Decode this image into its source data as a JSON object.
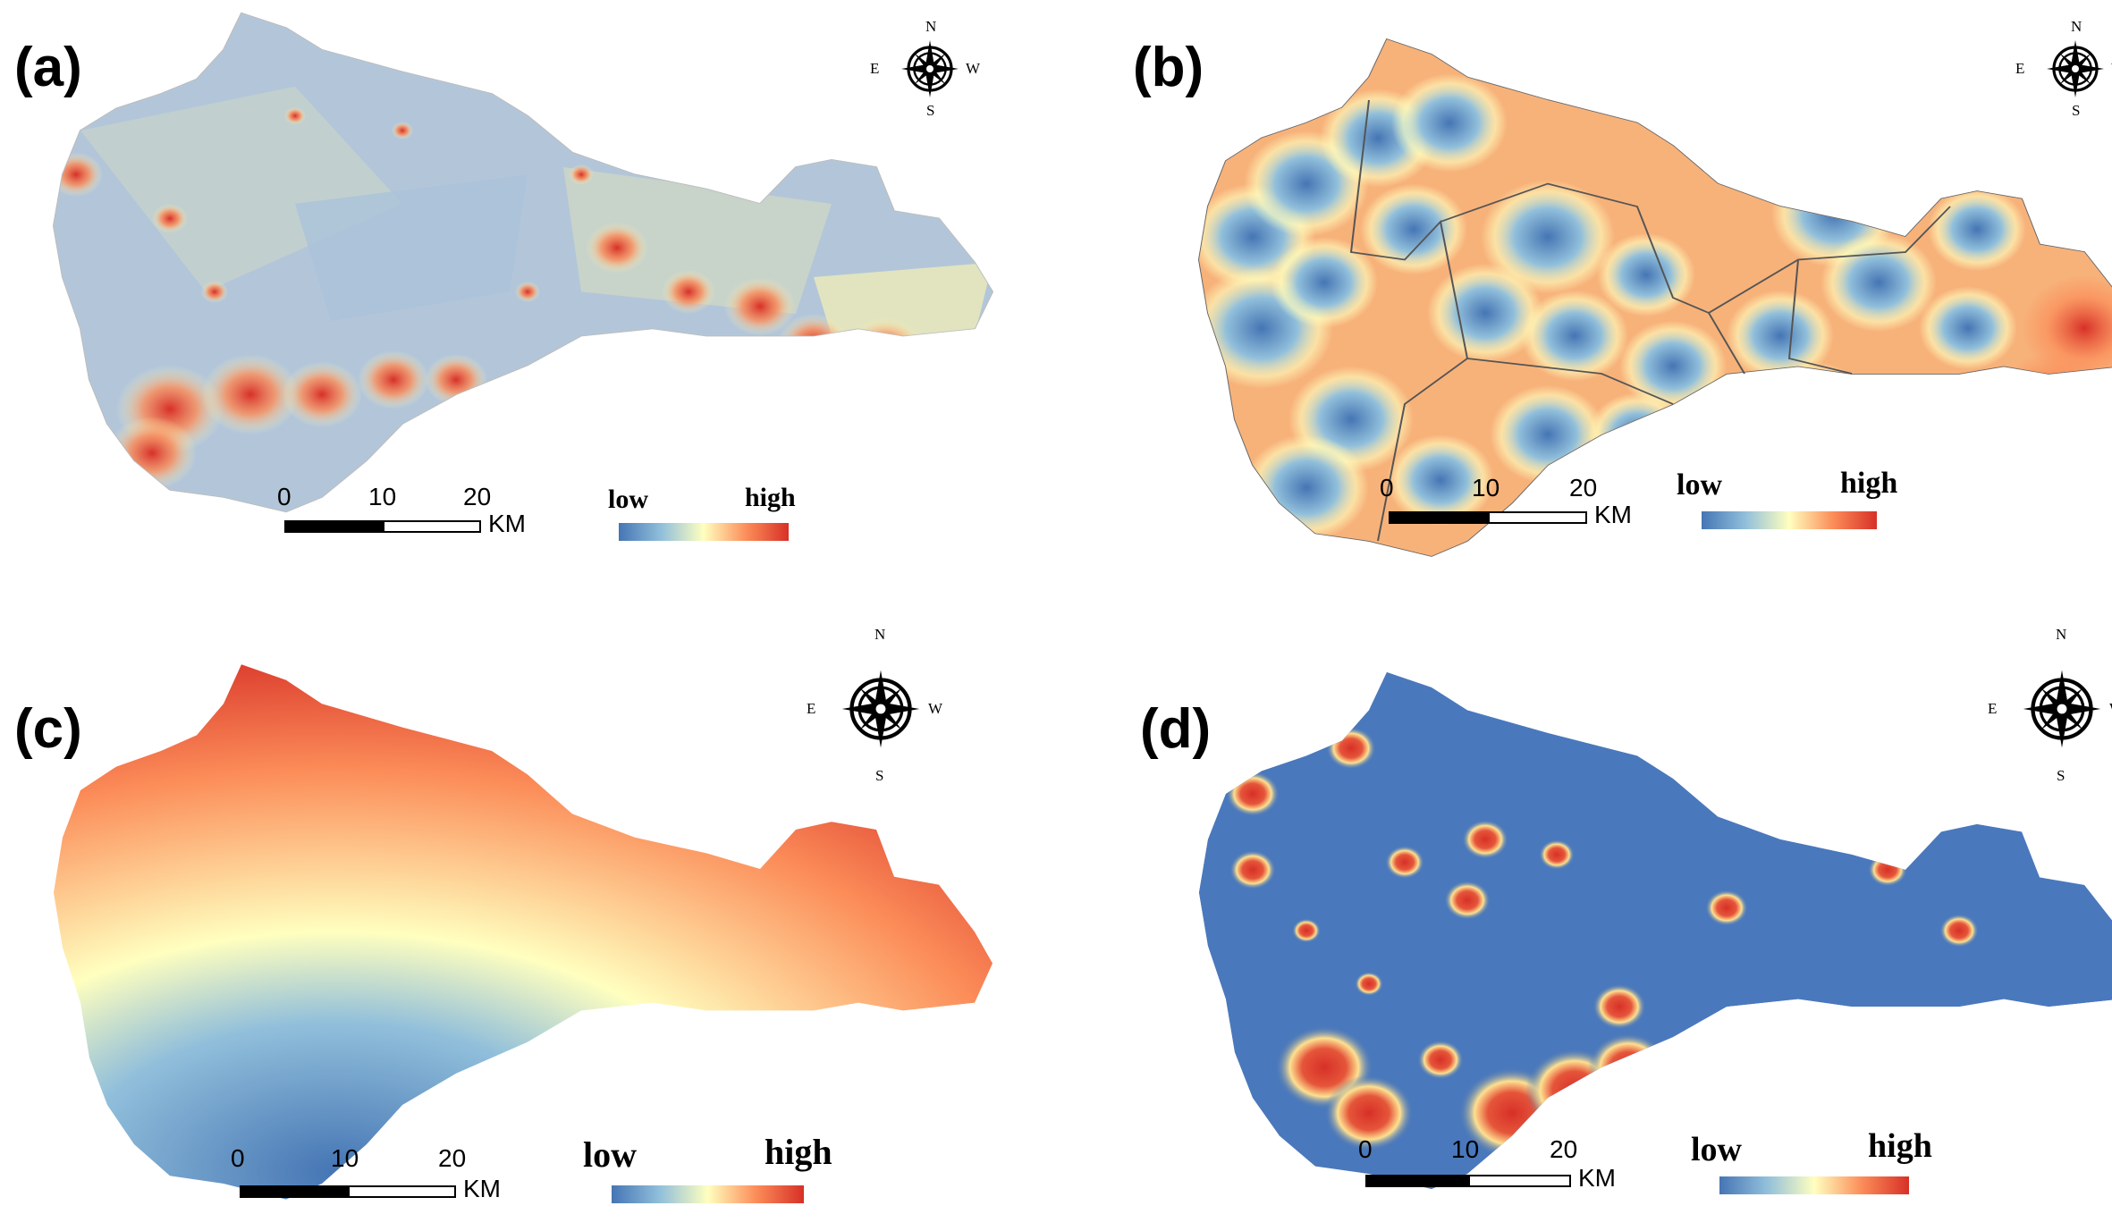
{
  "panels": [
    {
      "label": "(a)",
      "legend_low": "low",
      "legend_high": "high"
    },
    {
      "label": "(b)",
      "legend_low": "low",
      "legend_high": "high"
    },
    {
      "label": "(c)",
      "legend_low": "low",
      "legend_high": "high"
    },
    {
      "label": "(d)",
      "legend_low": "low",
      "legend_high": "high"
    }
  ],
  "compass": {
    "n": "N",
    "s": "S",
    "e": "E",
    "w": "W"
  },
  "scale": {
    "t0": "0",
    "t1": "10",
    "t2": "20",
    "unit": "KM"
  },
  "colors": {
    "low": "#4575b4",
    "mid": "#ffffbf",
    "high": "#d73027",
    "ramp": [
      "#4575b4",
      "#91bfdb",
      "#ffffbf",
      "#fc8d59",
      "#d73027"
    ]
  }
}
